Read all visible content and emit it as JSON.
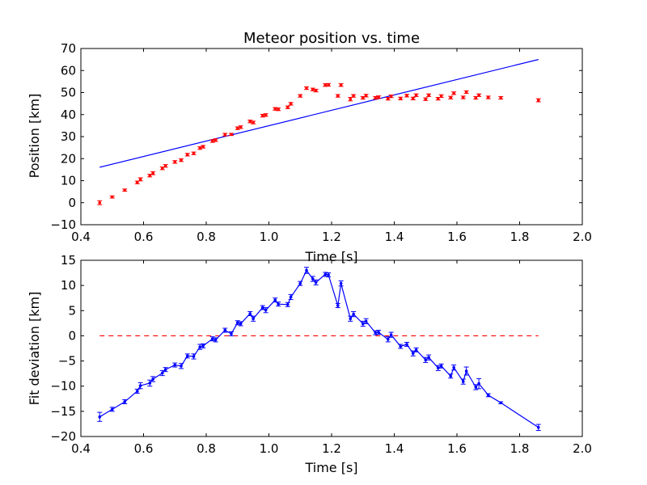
{
  "chart_data": [
    {
      "type": "scatter",
      "title": "Meteor position vs. time",
      "xlabel": "Time [s]",
      "ylabel": "Position [km]",
      "xlim": [
        0.4,
        2.0
      ],
      "ylim": [
        -10,
        70
      ],
      "xticks": [
        "0.4",
        "0.6",
        "0.8",
        "1.0",
        "1.2",
        "1.4",
        "1.6",
        "1.8",
        "2.0"
      ],
      "yticks": [
        "−10",
        "0",
        "10",
        "20",
        "30",
        "40",
        "50",
        "60",
        "70"
      ],
      "grid": false,
      "fit_line": {
        "x": [
          0.46,
          1.86
        ],
        "y": [
          16.1,
          65.0
        ],
        "color": "#0000ff"
      },
      "points_color": "#ff0000",
      "x": [
        0.46,
        0.5,
        0.54,
        0.58,
        0.59,
        0.62,
        0.63,
        0.66,
        0.67,
        0.7,
        0.72,
        0.74,
        0.76,
        0.78,
        0.79,
        0.82,
        0.83,
        0.86,
        0.88,
        0.9,
        0.91,
        0.94,
        0.95,
        0.98,
        0.99,
        1.02,
        1.03,
        1.06,
        1.07,
        1.1,
        1.12,
        1.14,
        1.15,
        1.18,
        1.19,
        1.22,
        1.23,
        1.26,
        1.27,
        1.3,
        1.31,
        1.34,
        1.35,
        1.38,
        1.39,
        1.42,
        1.44,
        1.46,
        1.47,
        1.5,
        1.51,
        1.54,
        1.55,
        1.58,
        1.59,
        1.62,
        1.63,
        1.66,
        1.67,
        1.7,
        1.74,
        1.86
      ],
      "y": [
        0.0,
        2.6,
        5.7,
        9.2,
        10.6,
        12.3,
        13.4,
        15.6,
        16.7,
        18.5,
        19.3,
        21.8,
        22.4,
        24.8,
        25.4,
        28.0,
        28.4,
        30.9,
        31.0,
        33.8,
        34.3,
        36.9,
        36.4,
        39.5,
        39.8,
        42.6,
        42.4,
        43.3,
        44.9,
        48.5,
        52.0,
        51.4,
        50.9,
        53.4,
        53.5,
        48.5,
        53.4,
        47.0,
        48.5,
        47.6,
        48.6,
        47.6,
        47.9,
        47.2,
        48.3,
        47.3,
        48.6,
        47.3,
        48.8,
        47.0,
        48.8,
        47.2,
        48.4,
        47.7,
        49.7,
        47.8,
        50.2,
        47.6,
        48.8,
        47.8,
        47.6,
        46.5
      ],
      "yerr": [
        0.9,
        0.5,
        0.5,
        0.6,
        0.7,
        0.6,
        0.7,
        0.6,
        0.6,
        0.6,
        0.6,
        0.6,
        0.6,
        0.6,
        0.6,
        0.6,
        0.6,
        0.6,
        0.5,
        0.6,
        0.6,
        0.6,
        0.6,
        0.6,
        0.6,
        0.6,
        0.6,
        0.6,
        0.6,
        0.6,
        0.6,
        0.6,
        0.6,
        0.6,
        0.6,
        0.6,
        0.6,
        0.8,
        0.6,
        0.6,
        0.6,
        0.6,
        0.6,
        0.6,
        0.6,
        0.6,
        0.6,
        0.6,
        0.6,
        0.6,
        0.6,
        0.6,
        0.6,
        0.6,
        0.6,
        0.6,
        0.6,
        0.6,
        0.6,
        0.6,
        0.6,
        0.7
      ]
    },
    {
      "type": "line",
      "title": "",
      "xlabel": "Time [s]",
      "ylabel": "Fit deviation [km]",
      "xlim": [
        0.4,
        2.0
      ],
      "ylim": [
        -20,
        15
      ],
      "xticks": [
        "0.4",
        "0.6",
        "0.8",
        "1.0",
        "1.2",
        "1.4",
        "1.6",
        "1.8",
        "2.0"
      ],
      "yticks": [
        "−20",
        "−15",
        "−10",
        "−5",
        "0",
        "5",
        "10",
        "15"
      ],
      "grid": false,
      "series_color": "#0000ff",
      "zero_line": {
        "y": 0,
        "x": [
          0.46,
          1.86
        ],
        "color": "#ff0000",
        "style": "dashed"
      },
      "x": [
        0.46,
        0.5,
        0.54,
        0.58,
        0.59,
        0.62,
        0.63,
        0.66,
        0.67,
        0.7,
        0.72,
        0.74,
        0.76,
        0.78,
        0.79,
        0.82,
        0.83,
        0.86,
        0.88,
        0.9,
        0.91,
        0.94,
        0.95,
        0.98,
        0.99,
        1.02,
        1.03,
        1.06,
        1.07,
        1.1,
        1.12,
        1.14,
        1.15,
        1.18,
        1.19,
        1.22,
        1.23,
        1.26,
        1.27,
        1.3,
        1.31,
        1.34,
        1.35,
        1.38,
        1.39,
        1.42,
        1.44,
        1.46,
        1.47,
        1.5,
        1.51,
        1.54,
        1.55,
        1.58,
        1.59,
        1.62,
        1.63,
        1.66,
        1.67,
        1.7,
        1.74,
        1.86
      ],
      "y": [
        -16.1,
        -14.6,
        -13.1,
        -11.0,
        -9.9,
        -9.4,
        -8.6,
        -7.4,
        -6.7,
        -5.8,
        -6.0,
        -4.0,
        -4.1,
        -2.2,
        -2.0,
        -0.6,
        -0.8,
        1.1,
        0.4,
        2.6,
        2.4,
        4.4,
        3.4,
        5.6,
        5.1,
        7.1,
        6.3,
        6.2,
        7.7,
        10.4,
        13.0,
        11.3,
        10.6,
        12.2,
        12.1,
        6.0,
        10.4,
        3.4,
        4.3,
        2.4,
        2.9,
        0.6,
        0.7,
        -0.7,
        0.2,
        -2.1,
        -1.7,
        -3.5,
        -2.8,
        -4.8,
        -4.3,
        -6.4,
        -6.0,
        -8.0,
        -6.3,
        -9.1,
        -7.0,
        -10.2,
        -9.5,
        -11.8,
        -13.3,
        -18.2
      ],
      "yerr": [
        0.9,
        0.4,
        0.4,
        0.4,
        0.6,
        0.6,
        0.5,
        0.5,
        0.4,
        0.4,
        0.5,
        0.4,
        0.5,
        0.5,
        0.4,
        0.4,
        0.4,
        0.4,
        0.4,
        0.4,
        0.4,
        0.4,
        0.5,
        0.4,
        0.5,
        0.4,
        0.4,
        0.4,
        0.5,
        0.4,
        0.6,
        0.5,
        0.5,
        0.4,
        0.4,
        0.4,
        0.5,
        0.5,
        0.5,
        0.5,
        0.5,
        0.4,
        0.4,
        0.5,
        0.5,
        0.4,
        0.4,
        0.5,
        0.4,
        0.5,
        0.5,
        0.5,
        0.4,
        0.4,
        0.5,
        0.5,
        0.8,
        0.5,
        1.0,
        0.3,
        0.2,
        0.6
      ]
    }
  ]
}
